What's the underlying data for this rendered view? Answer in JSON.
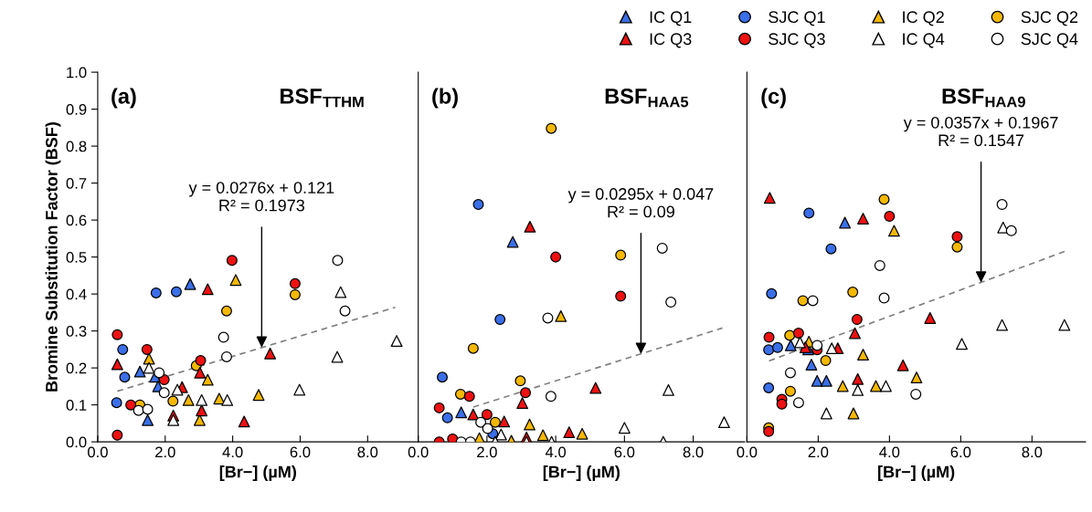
{
  "chart_data": [
    {
      "type": "scatter",
      "title": "BSF$_{TTHM}$",
      "xlabel": "[Br−] (µM)",
      "ylabel": "Bromine Substitution Factor (BSF)",
      "annotations": [
        "(a)",
        {
          "text": "y = 0.0276x + 0.121\nR² = 0.1973",
          "x": 4.86,
          "y": 0.255
        }
      ],
      "xlim": [
        0,
        9.5
      ],
      "xticks": [
        {
          "value": 0,
          "label": "0.0"
        },
        {
          "value": 2,
          "label": "2.0"
        },
        {
          "value": 4,
          "label": "4.0"
        },
        {
          "value": 6,
          "label": "6.0"
        },
        {
          "value": 8,
          "label": "8.0"
        }
      ],
      "ylim": [
        0,
        1
      ],
      "yticks": [
        {
          "value": 0,
          "label": "0.0"
        },
        0.1,
        0.2,
        0.3,
        0.4,
        0.5,
        0.6,
        0.7,
        0.8,
        0.9,
        {
          "value": 1,
          "label": "1.0"
        }
      ],
      "grid": false,
      "legend": "top right",
      "series": [
        {
          "name": "IC Q1",
          "marker": "triangle",
          "color": "#3b6fe8",
          "x": [
            1.25,
            1.7,
            1.79,
            1.48,
            2.74
          ],
          "values": [
            0.19,
            0.176,
            0.15,
            0.059,
            0.427
          ]
        },
        {
          "name": "SJC Q1",
          "marker": "circle",
          "color": "#3b6fe8",
          "x": [
            0.74,
            0.8,
            0.56,
            1.73,
            2.33
          ],
          "values": [
            0.25,
            0.175,
            0.106,
            0.403,
            0.406
          ]
        },
        {
          "name": "IC Q2",
          "marker": "triangle",
          "color": "#f5b800",
          "x": [
            1.52,
            3.26,
            2.69,
            3.6,
            4.77,
            3.02,
            4.09
          ],
          "values": [
            0.225,
            0.168,
            0.113,
            0.117,
            0.127,
            0.059,
            0.438
          ]
        },
        {
          "name": "SJC Q2",
          "marker": "circle",
          "color": "#f5b800",
          "x": [
            2.92,
            1.25,
            2.23,
            3.82,
            5.85
          ],
          "values": [
            0.206,
            0.1,
            0.11,
            0.354,
            0.398
          ]
        },
        {
          "name": "IC Q3",
          "marker": "triangle",
          "color": "#ee1111",
          "x": [
            0.58,
            2.5,
            3.03,
            3.08,
            2.24,
            4.34,
            5.11,
            3.26
          ],
          "values": [
            0.21,
            0.148,
            0.187,
            0.085,
            0.071,
            0.055,
            0.239,
            0.413
          ]
        },
        {
          "name": "SJC Q3",
          "marker": "circle",
          "color": "#ee1111",
          "x": [
            0.58,
            1.46,
            1.97,
            3.05,
            0.98,
            0.58,
            3.98,
            5.85
          ],
          "values": [
            0.29,
            0.25,
            0.168,
            0.22,
            0.1,
            0.018,
            0.491,
            0.428
          ]
        },
        {
          "name": "IC Q4",
          "marker": "triangle",
          "color": "#ffffff",
          "x": [
            1.52,
            2.36,
            3.08,
            3.84,
            5.98,
            2.24,
            7.1,
            8.86,
            7.2
          ],
          "values": [
            0.2,
            0.141,
            0.113,
            0.113,
            0.141,
            0.059,
            0.23,
            0.273,
            0.405
          ]
        },
        {
          "name": "SJC Q4",
          "marker": "circle",
          "color": "#ffffff",
          "x": [
            1.82,
            1.97,
            1.21,
            1.48,
            3.73,
            3.82,
            7.33,
            7.11
          ],
          "values": [
            0.187,
            0.133,
            0.085,
            0.088,
            0.283,
            0.23,
            0.354,
            0.491
          ]
        },
        {
          "type": "line",
          "marker": "none",
          "line_style": "dashed",
          "color": "#808080",
          "x": [
            0.58,
            8.82
          ],
          "values": [
            0.137,
            0.364
          ]
        }
      ]
    },
    {
      "type": "scatter",
      "title": "BSF$_{HAA5}$",
      "xlabel": "[Br−] (µM)",
      "annotations": [
        "(b)",
        {
          "text": "y = 0.0295x + 0.047\nR² = 0.09",
          "x": 6.48,
          "y": 0.238
        }
      ],
      "xlim": [
        0,
        9.5
      ],
      "xticks": [
        {
          "value": 0,
          "label": "0.0"
        },
        {
          "value": 2,
          "label": "2.0"
        },
        {
          "value": 4,
          "label": "4.0"
        },
        {
          "value": 6,
          "label": "6.0"
        },
        {
          "value": 8,
          "label": "8.0"
        }
      ],
      "ylim": [
        0,
        1
      ],
      "yticks": [
        0,
        0.1,
        0.2,
        0.3,
        0.4,
        0.5,
        0.6,
        0.7,
        0.8,
        0.9,
        1
      ],
      "tick_labels": "x",
      "grid": false,
      "series": [
        {
          "marker": "triangle",
          "color": "#3b6fe8",
          "x": [
            1.25,
            2.75
          ],
          "values": [
            0.08,
            0.541
          ]
        },
        {
          "marker": "circle",
          "color": "#3b6fe8",
          "x": [
            2.38,
            0.7,
            0.85,
            2.17,
            1.75
          ],
          "values": [
            0.331,
            0.175,
            0.065,
            0.022,
            0.642
          ]
        },
        {
          "marker": "triangle",
          "color": "#f5b800",
          "x": [
            4.15,
            3.24,
            1.78,
            2.71,
            3.63,
            4.77
          ],
          "values": [
            0.34,
            0.047,
            0.01,
            0.003,
            0.018,
            0.022
          ]
        },
        {
          "marker": "circle",
          "color": "#f5b800",
          "x": [
            1.6,
            2.97,
            1.23,
            2.24,
            3.87,
            5.89
          ],
          "values": [
            0.253,
            0.165,
            0.129,
            0.053,
            0.848,
            0.505
          ]
        },
        {
          "marker": "triangle",
          "color": "#ee1111",
          "x": [
            3.03,
            5.16,
            1.6,
            2.5,
            3.15,
            4.39,
            3.25
          ],
          "values": [
            0.105,
            0.146,
            0.074,
            0.055,
            0.012,
            0.026,
            0.582
          ]
        },
        {
          "marker": "circle",
          "color": "#ee1111",
          "x": [
            1.49,
            3.12,
            0.61,
            2.0,
            0.61,
            1.0,
            4.0,
            5.89
          ],
          "values": [
            0.123,
            0.133,
            0.092,
            0.074,
            0.0,
            0.008,
            0.5,
            0.394
          ]
        },
        {
          "marker": "triangle",
          "color": "#ffffff",
          "x": [
            7.28,
            2.41,
            2.24,
            3.15,
            3.88,
            6.0,
            7.13,
            8.9
          ],
          "values": [
            0.14,
            0.02,
            0.0,
            0.0,
            0.0,
            0.038,
            0.0,
            0.053
          ]
        },
        {
          "marker": "circle",
          "color": "#ffffff",
          "x": [
            3.77,
            3.86,
            1.82,
            2.02,
            1.25,
            1.52,
            7.1,
            7.35
          ],
          "values": [
            0.335,
            0.123,
            0.053,
            0.036,
            0.0,
            0.0,
            0.524,
            0.378
          ]
        },
        {
          "type": "line",
          "marker": "none",
          "line_style": "dashed",
          "color": "#808080",
          "x": [
            1.6,
            8.85
          ],
          "values": [
            0.094,
            0.308
          ]
        }
      ]
    },
    {
      "type": "scatter",
      "title": "BSF$_{HAA9}$",
      "xlabel": "[Br−] (µM)",
      "annotations": [
        "(c)",
        {
          "text": "y = 0.0357x + 0.1967\nR² = 0.1547",
          "x": 6.57,
          "y": 0.431
        }
      ],
      "xlim": [
        0,
        9.5
      ],
      "xticks": [
        {
          "value": 0,
          "label": "0.0"
        },
        {
          "value": 2,
          "label": "2.0"
        },
        {
          "value": 4,
          "label": "4.0"
        },
        {
          "value": 6,
          "label": "6.0"
        },
        {
          "value": 8,
          "label": "8.0"
        }
      ],
      "ylim": [
        0,
        1
      ],
      "yticks": [
        0,
        0.1,
        0.2,
        0.3,
        0.4,
        0.5,
        0.6,
        0.7,
        0.8,
        0.9,
        1
      ],
      "tick_labels": "x",
      "grid": false,
      "series": [
        {
          "marker": "triangle",
          "color": "#3b6fe8",
          "x": [
            1.23,
            1.72,
            1.81,
            1.97,
            2.23,
            2.75
          ],
          "values": [
            0.261,
            0.25,
            0.209,
            0.165,
            0.165,
            0.593
          ]
        },
        {
          "marker": "circle",
          "color": "#3b6fe8",
          "x": [
            0.61,
            0.86,
            0.61,
            1.74,
            2.36,
            0.69
          ],
          "values": [
            0.249,
            0.255,
            0.146,
            0.619,
            0.522,
            0.401
          ]
        },
        {
          "marker": "triangle",
          "color": "#f5b800",
          "x": [
            1.74,
            3.26,
            4.76,
            2.69,
            3.62,
            2.99,
            4.13
          ],
          "values": [
            0.271,
            0.236,
            0.174,
            0.151,
            0.151,
            0.077,
            0.571
          ]
        },
        {
          "marker": "circle",
          "color": "#f5b800",
          "x": [
            1.2,
            2.21,
            1.22,
            0.61,
            3.85,
            5.9,
            1.57,
            2.97
          ],
          "values": [
            0.288,
            0.22,
            0.137,
            0.038,
            0.656,
            0.527,
            0.382,
            0.405
          ]
        },
        {
          "marker": "triangle",
          "color": "#ee1111",
          "x": [
            5.14,
            3.03,
            1.64,
            2.55,
            4.38,
            3.11,
            0.64,
            3.26
          ],
          "values": [
            0.335,
            0.294,
            0.256,
            0.253,
            0.207,
            0.17,
            0.66,
            0.604
          ]
        },
        {
          "marker": "circle",
          "color": "#ee1111",
          "x": [
            3.09,
            0.62,
            1.45,
            1.97,
            0.98,
            0.98,
            0.61,
            4.0,
            5.9
          ],
          "values": [
            0.331,
            0.283,
            0.294,
            0.249,
            0.115,
            0.102,
            0.028,
            0.61,
            0.555
          ]
        },
        {
          "marker": "triangle",
          "color": "#ffffff",
          "x": [
            7.16,
            8.91,
            6.03,
            1.49,
            2.38,
            3.11,
            3.9,
            2.23,
            7.19
          ],
          "values": [
            0.316,
            0.316,
            0.265,
            0.269,
            0.253,
            0.14,
            0.151,
            0.077,
            0.58
          ]
        },
        {
          "marker": "circle",
          "color": "#ffffff",
          "x": [
            1.97,
            1.22,
            1.45,
            4.74,
            7.16,
            7.42,
            3.73,
            1.85,
            3.85
          ],
          "values": [
            0.261,
            0.187,
            0.106,
            0.129,
            0.642,
            0.571,
            0.477,
            0.382,
            0.389
          ]
        },
        {
          "type": "line",
          "marker": "none",
          "line_style": "dashed",
          "color": "#808080",
          "x": [
            0.62,
            8.94
          ],
          "values": [
            0.219,
            0.516
          ]
        }
      ]
    }
  ]
}
